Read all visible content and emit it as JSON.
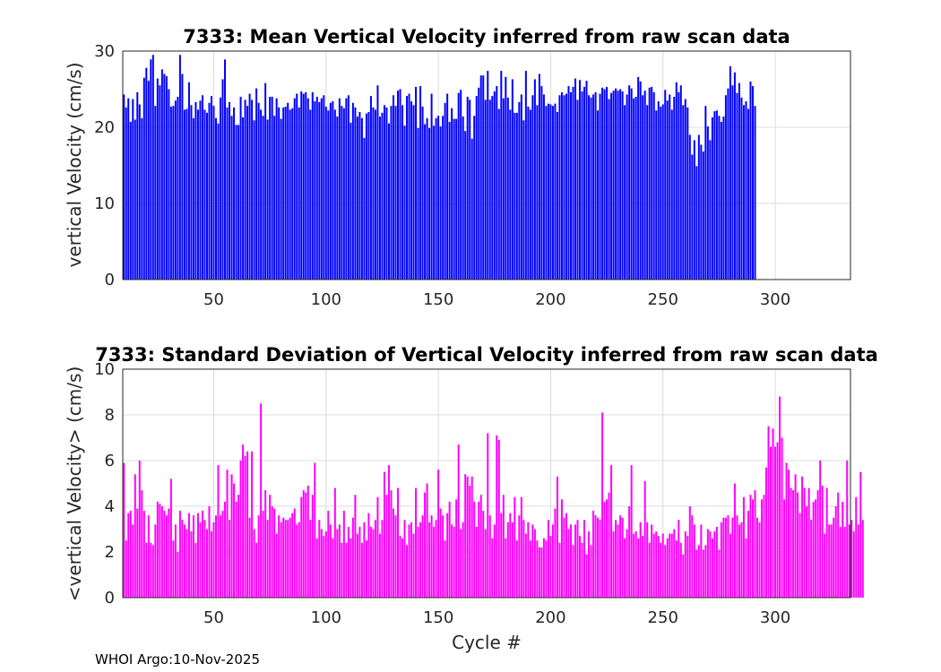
{
  "chart_data": [
    {
      "type": "bar",
      "title": "7333: Mean Vertical Velocity inferred from raw scan data",
      "xlabel": "",
      "ylabel": "vertical Velocity (cm/s)",
      "xlim": [
        9.5,
        333.5
      ],
      "ylim": [
        0,
        30
      ],
      "xticks": [
        50,
        100,
        150,
        200,
        250,
        300
      ],
      "yticks": [
        0,
        10,
        20,
        30
      ],
      "grid": true,
      "color": "#0000ff",
      "x_start": 10,
      "values": [
        24.3,
        22.6,
        23.8,
        20.7,
        23.7,
        21.0,
        24.6,
        23.0,
        21.2,
        26.5,
        27.8,
        26.1,
        28.9,
        29.5,
        22.8,
        26.4,
        25.5,
        27.6,
        27.0,
        26.7,
        25.0,
        22.7,
        22.8,
        23.5,
        24.0,
        29.5,
        27.0,
        22.3,
        22.4,
        25.9,
        22.9,
        21.2,
        23.3,
        22.3,
        23.5,
        24.2,
        22.3,
        21.9,
        23.2,
        24.1,
        22.8,
        21.2,
        20.5,
        23.9,
        26.3,
        28.9,
        22.6,
        23.3,
        21.5,
        22.6,
        20.3,
        20.3,
        24.0,
        21.3,
        23.6,
        22.8,
        24.4,
        23.6,
        20.9,
        25.1,
        23.2,
        22.3,
        21.5,
        25.8,
        21.0,
        24.0,
        24.0,
        21.5,
        23.8,
        22.6,
        21.1,
        22.6,
        22.7,
        23.2,
        22.3,
        22.5,
        23.8,
        24.4,
        22.6,
        24.7,
        24.4,
        24.6,
        23.8,
        22.3,
        24.6,
        23.4,
        24.0,
        23.3,
        23.8,
        24.2,
        22.7,
        22.2,
        23.2,
        23.4,
        22.3,
        21.4,
        23.8,
        22.8,
        22.5,
        23.8,
        24.2,
        20.6,
        23.2,
        22.6,
        21.4,
        22.0,
        21.2,
        18.6,
        21.8,
        22.0,
        24.1,
        22.6,
        22.3,
        25.5,
        21.4,
        21.9,
        22.9,
        22.6,
        20.5,
        22.8,
        24.2,
        22.8,
        24.8,
        25.0,
        22.9,
        20.2,
        24.1,
        24.4,
        23.4,
        22.9,
        25.3,
        19.9,
        25.4,
        22.7,
        20.4,
        21.2,
        19.9,
        24.4,
        20.2,
        21.2,
        21.5,
        20.1,
        21.5,
        23.2,
        24.4,
        20.7,
        22.5,
        21.1,
        21.1,
        24.5,
        24.9,
        21.4,
        19.5,
        24.0,
        23.6,
        18.5,
        21.5,
        24.1,
        25.2,
        26.8,
        26.8,
        23.6,
        27.4,
        23.6,
        24.1,
        24.7,
        25.4,
        22.4,
        27.4,
        23.8,
        26.6,
        23.9,
        22.3,
        26.3,
        21.9,
        21.9,
        23.3,
        24.3,
        20.9,
        27.4,
        22.7,
        22.3,
        24.2,
        26.3,
        22.9,
        27.0,
        25.4,
        24.3,
        22.8,
        23.1,
        23.0,
        22.8,
        23.1,
        22.0,
        24.2,
        24.6,
        24.2,
        24.4,
        25.4,
        24.6,
        25.3,
        26.4,
        23.6,
        26.2,
        24.7,
        25.3,
        26.1,
        24.2,
        23.9,
        24.3,
        24.6,
        22.2,
        24.4,
        25.2,
        25.0,
        25.3,
        23.7,
        24.5,
        24.8,
        25.1,
        24.8,
        25.0,
        24.7,
        22.9,
        24.3,
        25.5,
        25.1,
        23.8,
        24.0,
        26.6,
        26.0,
        24.2,
        24.8,
        22.9,
        25.2,
        25.3,
        24.6,
        22.2,
        23.4,
        22.7,
        23.0,
        24.9,
        23.5,
        24.3,
        22.3,
        24.0,
        25.9,
        24.6,
        25.5,
        22.9,
        23.7,
        22.6,
        19.0,
        16.4,
        18.3,
        14.9,
        19.0,
        17.7,
        16.8,
        22.8,
        20.1,
        18.3,
        21.3,
        22.1,
        22.2,
        21.5,
        20.7,
        21.4,
        24.2,
        25.1,
        28.0,
        25.5,
        27.2,
        24.5,
        25.8,
        23.9,
        22.9,
        23.4,
        22.4,
        26.0,
        25.4,
        22.8
      ]
    },
    {
      "type": "bar",
      "title": "7333: Standard Deviation of Vertical Velocity inferred from raw scan data",
      "xlabel": "Cycle #",
      "ylabel": "<vertical Velocity> (cm/s)",
      "xlim": [
        9.5,
        333.5
      ],
      "ylim": [
        0,
        10
      ],
      "xticks": [
        50,
        100,
        150,
        200,
        250,
        300
      ],
      "yticks": [
        0,
        2,
        4,
        6,
        8,
        10
      ],
      "grid": true,
      "color": "#ff00ff",
      "x_start": 10,
      "values": [
        5.9,
        2.5,
        3.7,
        3.8,
        3.2,
        5.4,
        3.9,
        6.0,
        4.7,
        3.8,
        2.4,
        3.6,
        2.4,
        2.3,
        3.2,
        4.2,
        4.1,
        4.0,
        3.8,
        3.6,
        3.9,
        5.2,
        2.5,
        3.2,
        2.0,
        3.8,
        3.4,
        3.2,
        3.0,
        3.7,
        2.9,
        3.6,
        2.4,
        3.7,
        3.3,
        3.8,
        3.4,
        3.0,
        4.0,
        2.9,
        3.3,
        3.6,
        5.8,
        3.6,
        3.8,
        4.2,
        5.6,
        3.4,
        5.4,
        5.0,
        4.2,
        4.5,
        6.0,
        6.7,
        6.2,
        6.4,
        3.5,
        6.4,
        3.0,
        2.4,
        3.6,
        8.5,
        3.8,
        4.7,
        3.4,
        4.5,
        4.0,
        3.9,
        2.8,
        3.6,
        3.3,
        3.5,
        3.4,
        3.4,
        3.5,
        3.7,
        3.9,
        3.2,
        3.3,
        4.4,
        4.7,
        4.6,
        4.9,
        3.4,
        4.5,
        5.9,
        2.6,
        3.4,
        3.0,
        2.7,
        2.9,
        3.8,
        3.2,
        2.6,
        4.8,
        3.0,
        3.2,
        2.4,
        3.8,
        2.4,
        3.1,
        2.6,
        3.5,
        4.5,
        2.8,
        3.1,
        2.4,
        3.3,
        2.5,
        3.7,
        3.1,
        3.0,
        3.4,
        4.4,
        2.8,
        3.4,
        5.5,
        4.5,
        5.8,
        4.7,
        3.9,
        3.6,
        4.8,
        2.7,
        2.6,
        3.4,
        2.3,
        3.2,
        3.3,
        2.8,
        4.8,
        3.1,
        3.3,
        3.6,
        4.6,
        5.0,
        3.3,
        3.6,
        3.1,
        3.4,
        5.6,
        3.9,
        3.6,
        2.5,
        3.7,
        4.2,
        3.2,
        3.1,
        4.3,
        6.7,
        3.0,
        3.3,
        5.4,
        5.3,
        4.9,
        5.3,
        4.2,
        3.1,
        4.2,
        4.5,
        3.8,
        3.0,
        7.2,
        3.6,
        2.6,
        3.2,
        7.1,
        6.9,
        3.7,
        4.5,
        2.6,
        3.3,
        3.7,
        3.3,
        4.4,
        2.5,
        3.6,
        4.4,
        3.4,
        2.8,
        3.3,
        2.5,
        3.2,
        3.0,
        2.5,
        2.2,
        2.2,
        2.6,
        2.5,
        3.4,
        2.7,
        3.2,
        3.9,
        5.3,
        2.4,
        4.3,
        3.5,
        3.7,
        3.0,
        3.2,
        2.3,
        3.2,
        3.4,
        2.7,
        2.4,
        3.4,
        1.9,
        2.9,
        2.3,
        3.8,
        3.6,
        3.5,
        3.4,
        8.1,
        4.2,
        4.3,
        4.6,
        5.8,
        2.9,
        3.4,
        3.2,
        3.6,
        3.5,
        2.6,
        3.0,
        4.0,
        5.8,
        2.8,
        2.9,
        2.6,
        3.3,
        2.7,
        5.1,
        3.3,
        2.4,
        3.2,
        2.8,
        2.9,
        2.7,
        2.4,
        2.8,
        2.3,
        2.6,
        2.8,
        2.8,
        3.0,
        2.5,
        3.4,
        2.4,
        1.9,
        2.9,
        2.7,
        4.0,
        3.6,
        3.2,
        2.1,
        2.3,
        3.2,
        2.1,
        2.3,
        3.0,
        2.9,
        2.6,
        2.9,
        3.1,
        2.1,
        3.3,
        3.5,
        3.5,
        3.6,
        2.8,
        3.5,
        5.0,
        3.6,
        3.2,
        3.3,
        4.4,
        2.6,
        3.8,
        4.5,
        4.3,
        4.7,
        3.5,
        3.3,
        4.3,
        4.5,
        5.7,
        7.5,
        6.6,
        7.4,
        6.6,
        6.8,
        8.8,
        7.0,
        4.3,
        5.9,
        5.6,
        4.8,
        4.7,
        5.4,
        4.6,
        3.7,
        5.3,
        4.8,
        4.0,
        4.8,
        3.4,
        4.2,
        4.3,
        4.7,
        6.0,
        4.9,
        2.8,
        4.8,
        3.2,
        3.2,
        3.5,
        4.0,
        4.6,
        3.1,
        4.2,
        3.1,
        6.0,
        3.2,
        3.4,
        2.9,
        4.4,
        3.2,
        5.5,
        3.4
      ]
    }
  ],
  "footer": "WHOI Argo:10-Nov-2025"
}
